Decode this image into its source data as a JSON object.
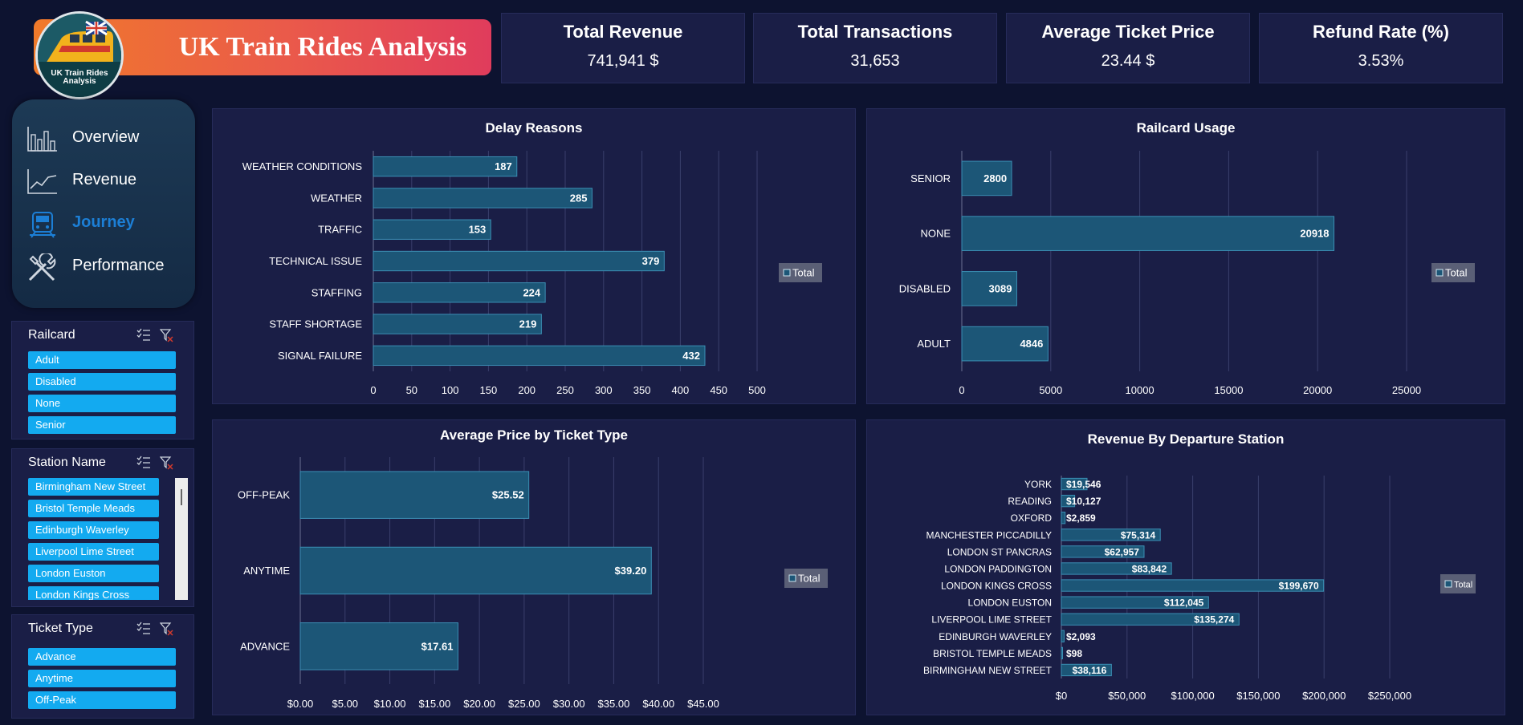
{
  "header": {
    "title": "UK Train Rides Analysis",
    "logo_text_line1": "UK Train Rides",
    "logo_text_line2": "Analysis"
  },
  "kpis": [
    {
      "title": "Total Revenue",
      "value": "741,941 $"
    },
    {
      "title": "Total Transactions",
      "value": "31,653"
    },
    {
      "title": "Average Ticket Price",
      "value": "23.44 $"
    },
    {
      "title": "Refund Rate (%)",
      "value": "3.53%"
    }
  ],
  "nav": {
    "items": [
      {
        "label": "Overview",
        "icon": "bar-chart-icon"
      },
      {
        "label": "Revenue",
        "icon": "line-chart-icon"
      },
      {
        "label": "Journey",
        "icon": "train-icon",
        "active": true
      },
      {
        "label": "Performance",
        "icon": "tools-icon"
      }
    ]
  },
  "slicers": {
    "railcard": {
      "title": "Railcard",
      "items": [
        "Adult",
        "Disabled",
        "None",
        "Senior"
      ]
    },
    "station": {
      "title": "Station Name",
      "items": [
        "Birmingham New Street",
        "Bristol Temple Meads",
        "Edinburgh Waverley",
        "Liverpool Lime Street",
        "London Euston",
        "London Kings Cross"
      ]
    },
    "ticket_type": {
      "title": "Ticket Type",
      "items": [
        "Advance",
        "Anytime",
        "Off-Peak"
      ]
    }
  },
  "colors": {
    "bar": "#1c5677",
    "bar_stroke": "#3b8fb4",
    "panel": "#1a1e46",
    "chip": "#13aaf0",
    "accent_orange": "#f07a2a",
    "accent_pink": "#e03c5c"
  },
  "chart_data": [
    {
      "type": "bar",
      "title": "Delay Reasons",
      "categories": [
        "WEATHER CONDITIONS",
        "WEATHER",
        "TRAFFIC",
        "TECHNICAL ISSUE",
        "STAFFING",
        "STAFF SHORTAGE",
        "SIGNAL FAILURE"
      ],
      "values": [
        187,
        285,
        153,
        379,
        224,
        219,
        432
      ],
      "value_labels": [
        "187",
        "285",
        "153",
        "379",
        "224",
        "219",
        "432"
      ],
      "xlim": [
        0,
        500
      ],
      "ticks": [
        0,
        50,
        100,
        150,
        200,
        250,
        300,
        350,
        400,
        450,
        500
      ],
      "tick_labels": [
        "0",
        "50",
        "100",
        "150",
        "200",
        "250",
        "300",
        "350",
        "400",
        "450",
        "500"
      ],
      "legend": "Total",
      "legend_position": "right",
      "grid": true
    },
    {
      "type": "bar",
      "title": "Railcard Usage",
      "categories": [
        "SENIOR",
        "NONE",
        "DISABLED",
        "ADULT"
      ],
      "values": [
        2800,
        20918,
        3089,
        4846
      ],
      "value_labels": [
        "2800",
        "20918",
        "3089",
        "4846"
      ],
      "xlim": [
        0,
        25000
      ],
      "ticks": [
        0,
        5000,
        10000,
        15000,
        20000,
        25000
      ],
      "tick_labels": [
        "0",
        "5000",
        "10000",
        "15000",
        "20000",
        "25000"
      ],
      "legend": "Total",
      "legend_position": "right",
      "grid": true
    },
    {
      "type": "bar",
      "title": "Average Price by Ticket Type",
      "categories": [
        "OFF-PEAK",
        "ANYTIME",
        "ADVANCE"
      ],
      "values": [
        25.52,
        39.2,
        17.61
      ],
      "value_labels": [
        "$25.52",
        "$39.20",
        "$17.61"
      ],
      "xlim": [
        0,
        45
      ],
      "ticks": [
        0,
        5,
        10,
        15,
        20,
        25,
        30,
        35,
        40,
        45
      ],
      "tick_labels": [
        "$0.00",
        "$5.00",
        "$10.00",
        "$15.00",
        "$20.00",
        "$25.00",
        "$30.00",
        "$35.00",
        "$40.00",
        "$45.00"
      ],
      "legend": "Total",
      "legend_position": "right",
      "grid": true
    },
    {
      "type": "bar",
      "title": "Revenue By Departure Station",
      "categories": [
        "YORK",
        "READING",
        "OXFORD",
        "MANCHESTER PICCADILLY",
        "LONDON ST PANCRAS",
        "LONDON PADDINGTON",
        "LONDON KINGS CROSS",
        "LONDON EUSTON",
        "LIVERPOOL LIME STREET",
        "EDINBURGH WAVERLEY",
        "BRISTOL TEMPLE MEADS",
        "BIRMINGHAM NEW STREET"
      ],
      "values": [
        19546,
        10127,
        2859,
        75314,
        62957,
        83842,
        199670,
        112045,
        135274,
        2093,
        98,
        38116
      ],
      "value_labels": [
        "$19,546",
        "$10,127",
        "$2,859",
        "$75,314",
        "$62,957",
        "$83,842",
        "$199,670",
        "$112,045",
        "$135,274",
        "$2,093",
        "$98",
        "$38,116"
      ],
      "xlim": [
        0,
        250000
      ],
      "ticks": [
        0,
        50000,
        100000,
        150000,
        200000,
        250000
      ],
      "tick_labels": [
        "$0",
        "$50,000",
        "$100,000",
        "$150,000",
        "$200,000",
        "$250,000"
      ],
      "legend": "Total",
      "legend_position": "right",
      "grid": true
    }
  ]
}
